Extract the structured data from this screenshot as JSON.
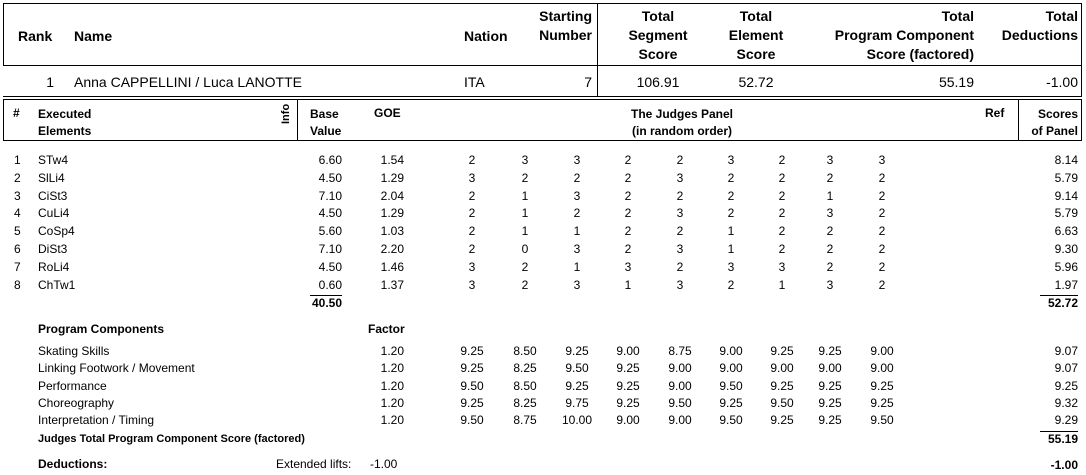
{
  "summary_headers": {
    "rank": "Rank",
    "name": "Name",
    "nation": "Nation",
    "starting_number": [
      "Starting",
      "Number"
    ],
    "tss": [
      "Total",
      "Segment",
      "Score"
    ],
    "tes": [
      "Total",
      "Element",
      "Score"
    ],
    "pcs": [
      "Total",
      "Program Component",
      "Score (factored)"
    ],
    "ded": [
      "Total",
      "Deductions"
    ]
  },
  "summary": {
    "rank": "1",
    "name": "Anna CAPPELLINI / Luca LANOTTE",
    "nation": "ITA",
    "starting_number": "7",
    "tss": "106.91",
    "tes": "52.72",
    "pcs": "55.19",
    "ded": "-1.00"
  },
  "element_headers": {
    "num": "#",
    "executed": [
      "Executed",
      "Elements"
    ],
    "info": "Info",
    "base": [
      "Base",
      "Value"
    ],
    "goe": "GOE",
    "panel": [
      "The Judges Panel",
      "(in random order)"
    ],
    "ref": "Ref",
    "scores": [
      "Scores",
      "of Panel"
    ]
  },
  "elements": [
    {
      "num": "1",
      "name": "STw4",
      "base": "6.60",
      "goe": "1.54",
      "judges": [
        "2",
        "3",
        "3",
        "2",
        "2",
        "3",
        "2",
        "3",
        "3"
      ],
      "score": "8.14"
    },
    {
      "num": "2",
      "name": "SlLi4",
      "base": "4.50",
      "goe": "1.29",
      "judges": [
        "3",
        "2",
        "2",
        "2",
        "3",
        "2",
        "2",
        "2",
        "2"
      ],
      "score": "5.79"
    },
    {
      "num": "3",
      "name": "CiSt3",
      "base": "7.10",
      "goe": "2.04",
      "judges": [
        "2",
        "1",
        "3",
        "2",
        "2",
        "2",
        "2",
        "1",
        "2"
      ],
      "score": "9.14"
    },
    {
      "num": "4",
      "name": "CuLi4",
      "base": "4.50",
      "goe": "1.29",
      "judges": [
        "2",
        "1",
        "2",
        "2",
        "3",
        "2",
        "2",
        "3",
        "2"
      ],
      "score": "5.79"
    },
    {
      "num": "5",
      "name": "CoSp4",
      "base": "5.60",
      "goe": "1.03",
      "judges": [
        "2",
        "1",
        "1",
        "2",
        "2",
        "1",
        "2",
        "2",
        "2"
      ],
      "score": "6.63"
    },
    {
      "num": "6",
      "name": "DiSt3",
      "base": "7.10",
      "goe": "2.20",
      "judges": [
        "2",
        "0",
        "3",
        "2",
        "3",
        "1",
        "2",
        "2",
        "2"
      ],
      "score": "9.30"
    },
    {
      "num": "7",
      "name": "RoLi4",
      "base": "4.50",
      "goe": "1.46",
      "judges": [
        "3",
        "2",
        "1",
        "3",
        "2",
        "3",
        "3",
        "2",
        "2"
      ],
      "score": "5.96"
    },
    {
      "num": "8",
      "name": "ChTw1",
      "base": "0.60",
      "goe": "1.37",
      "judges": [
        "3",
        "2",
        "3",
        "1",
        "3",
        "2",
        "1",
        "3",
        "2"
      ],
      "score": "1.97"
    }
  ],
  "elements_total_base": "40.50",
  "elements_total_score": "52.72",
  "pc_header": "Program Components",
  "factor_header": "Factor",
  "components": [
    {
      "name": "Skating Skills",
      "factor": "1.20",
      "judges": [
        "9.25",
        "8.50",
        "9.25",
        "9.00",
        "8.75",
        "9.00",
        "9.25",
        "9.25",
        "9.00"
      ],
      "score": "9.07"
    },
    {
      "name": "Linking Footwork / Movement",
      "factor": "1.20",
      "judges": [
        "9.25",
        "8.25",
        "9.50",
        "9.25",
        "9.00",
        "9.00",
        "9.00",
        "9.00",
        "9.00"
      ],
      "score": "9.07"
    },
    {
      "name": "Performance",
      "factor": "1.20",
      "judges": [
        "9.50",
        "8.50",
        "9.25",
        "9.25",
        "9.00",
        "9.50",
        "9.25",
        "9.25",
        "9.25"
      ],
      "score": "9.25"
    },
    {
      "name": "Choreography",
      "factor": "1.20",
      "judges": [
        "9.25",
        "8.25",
        "9.75",
        "9.25",
        "9.50",
        "9.25",
        "9.50",
        "9.25",
        "9.25"
      ],
      "score": "9.32"
    },
    {
      "name": "Interpretation / Timing",
      "factor": "1.20",
      "judges": [
        "9.50",
        "8.75",
        "10.00",
        "9.00",
        "9.00",
        "9.50",
        "9.25",
        "9.25",
        "9.50"
      ],
      "score": "9.29"
    }
  ],
  "pcs_total_label": "Judges Total Program Component Score (factored)",
  "pcs_total": "55.19",
  "deductions": {
    "label": "Deductions:",
    "item": "Extended lifts:",
    "item_value": "-1.00",
    "total": "-1.00"
  }
}
